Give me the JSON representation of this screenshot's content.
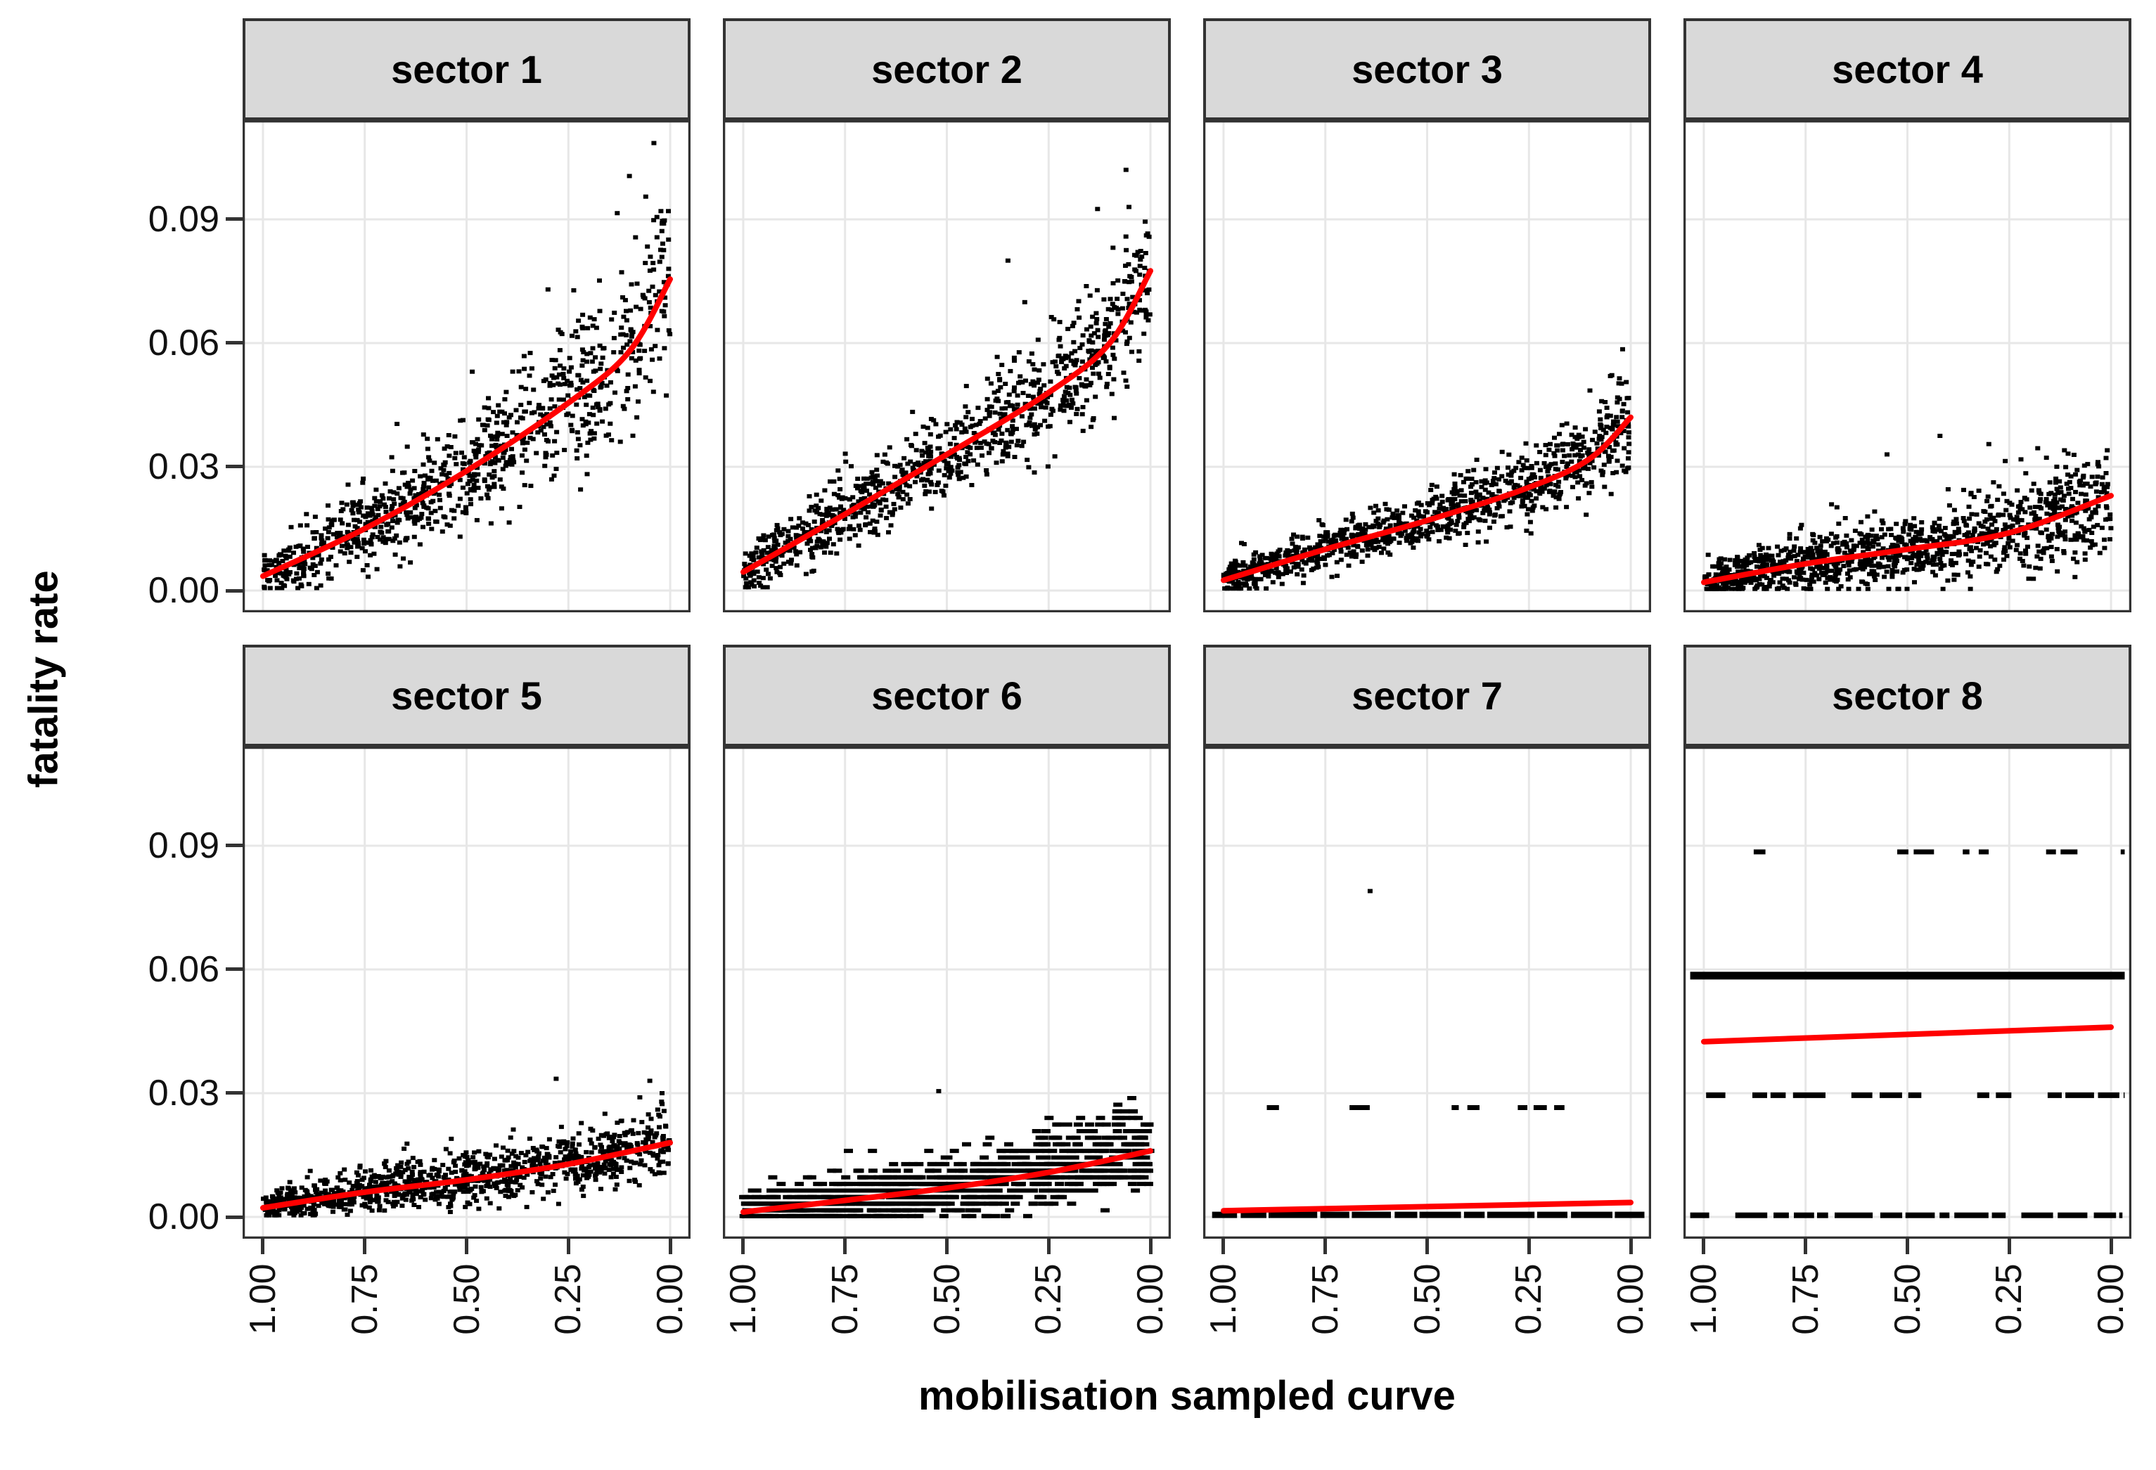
{
  "figure": {
    "y_axis_title": "fatality rate",
    "x_axis_title": "mobilisation sampled curve",
    "y_ticks": [
      "0.09",
      "0.06",
      "0.03",
      "0.00"
    ],
    "y_tick_values": [
      0.09,
      0.06,
      0.03,
      0.0
    ],
    "x_ticks": [
      "1.00",
      "0.75",
      "0.50",
      "0.25",
      "0.00"
    ],
    "x_tick_values": [
      1.0,
      0.75,
      0.5,
      0.25,
      0.0
    ],
    "x_axis_reversed": true,
    "legend": "none",
    "grid": "major-only",
    "colors": {
      "point": "#000000",
      "smooth_line": "#ff0000",
      "strip_fill": "#d9d9d9",
      "strip_border": "#333333",
      "panel_border": "#333333",
      "gridline": "#e7e7e7",
      "tick_mark": "#333333",
      "axis_text": "#111111",
      "background": "#ffffff"
    }
  },
  "chart_data": {
    "type": "scatter",
    "title": "",
    "xlabel": "mobilisation sampled curve",
    "ylabel": "fatality rate",
    "facet_layout": {
      "rows": 2,
      "cols": 4
    },
    "x_display_range": [
      1.05,
      -0.05
    ],
    "y_display_range": [
      -0.0053,
      0.1141
    ],
    "point_style": {
      "color": "#000000",
      "w": 7,
      "h": 6
    },
    "smooth_style": {
      "color": "#ff0000",
      "width": 8
    },
    "facets": [
      {
        "label": "sector 1",
        "kind": "scatter",
        "n": 900,
        "seed": 101,
        "smooth_line": [
          [
            1.0,
            0.0035
          ],
          [
            0.75,
            0.015
          ],
          [
            0.5,
            0.029
          ],
          [
            0.25,
            0.0455
          ],
          [
            0.1,
            0.058
          ],
          [
            0.0,
            0.0755
          ]
        ],
        "noise": {
          "base": 0.0028,
          "prop": 0.13
        },
        "y_min": 0.0006,
        "y_max": 0.092,
        "extra_points": [
          [
            0.04,
            0.1085
          ],
          [
            0.1,
            0.1005
          ],
          [
            0.06,
            0.0955
          ],
          [
            0.13,
            0.0915
          ],
          [
            0.02,
            0.089
          ],
          [
            0.3,
            0.073
          ]
        ]
      },
      {
        "label": "sector 2",
        "kind": "scatter",
        "n": 950,
        "seed": 202,
        "smooth_line": [
          [
            1.0,
            0.0045
          ],
          [
            0.75,
            0.0185
          ],
          [
            0.5,
            0.033
          ],
          [
            0.25,
            0.048
          ],
          [
            0.1,
            0.06
          ],
          [
            0.0,
            0.0775
          ]
        ],
        "noise": {
          "base": 0.0022,
          "prop": 0.1
        },
        "y_min": 0.0008,
        "y_max": 0.093,
        "extra_points": [
          [
            0.06,
            0.102
          ],
          [
            0.13,
            0.0925
          ],
          [
            0.35,
            0.08
          ]
        ]
      },
      {
        "label": "sector 3",
        "kind": "scatter",
        "n": 1000,
        "seed": 303,
        "smooth_line": [
          [
            1.0,
            0.0025
          ],
          [
            0.75,
            0.01
          ],
          [
            0.5,
            0.017
          ],
          [
            0.25,
            0.025
          ],
          [
            0.1,
            0.032
          ],
          [
            0.0,
            0.042
          ]
        ],
        "noise": {
          "base": 0.0016,
          "prop": 0.11
        },
        "y_min": 0.0005,
        "y_max": 0.054,
        "extra_points": [
          [
            0.02,
            0.0585
          ],
          [
            0.05,
            0.052
          ]
        ]
      },
      {
        "label": "sector 4",
        "kind": "scatter",
        "n": 1150,
        "seed": 404,
        "smooth_line": [
          [
            1.0,
            0.002
          ],
          [
            0.75,
            0.0065
          ],
          [
            0.5,
            0.01
          ],
          [
            0.25,
            0.014
          ],
          [
            0.0,
            0.023
          ]
        ],
        "noise": {
          "base": 0.002,
          "prop": 0.22
        },
        "y_min": 0.0004,
        "y_max": 0.034,
        "extra_points": [
          [
            0.42,
            0.0375
          ],
          [
            0.3,
            0.0355
          ],
          [
            0.18,
            0.0345
          ],
          [
            0.55,
            0.033
          ]
        ]
      },
      {
        "label": "sector 5",
        "kind": "scatter",
        "n": 1050,
        "seed": 505,
        "smooth_line": [
          [
            1.0,
            0.0022
          ],
          [
            0.75,
            0.006
          ],
          [
            0.5,
            0.009
          ],
          [
            0.25,
            0.0128
          ],
          [
            0.0,
            0.018
          ]
        ],
        "noise": {
          "base": 0.0016,
          "prop": 0.16
        },
        "y_min": 0.0004,
        "y_max": 0.029,
        "extra_points": [
          [
            0.28,
            0.0335
          ],
          [
            0.05,
            0.033
          ],
          [
            0.02,
            0.03
          ]
        ]
      },
      {
        "label": "sector 6",
        "kind": "scatter",
        "n": 1150,
        "seed": 606,
        "quantize": 0.0016,
        "dash_points": true,
        "smooth_line": [
          [
            1.0,
            0.0012
          ],
          [
            0.75,
            0.004
          ],
          [
            0.5,
            0.007
          ],
          [
            0.25,
            0.0108
          ],
          [
            0.0,
            0.016
          ]
        ],
        "noise": {
          "base": 0.002,
          "prop": 0.2
        },
        "y_min": 0.0002,
        "y_max": 0.029,
        "extra_points": [
          [
            0.52,
            0.0305
          ]
        ]
      },
      {
        "label": "sector 7",
        "kind": "bands",
        "seed": 707,
        "smooth_line": [
          [
            1.0,
            0.0015
          ],
          [
            0.0,
            0.0035
          ]
        ],
        "bands": [
          {
            "y": 0.0005,
            "h": 9,
            "x0": 0.02,
            "x1": 0.985,
            "d0": 0.94,
            "d1": 0.94,
            "wMin": 26,
            "wMax": 70,
            "gMin": 3,
            "gMax": 9
          },
          {
            "y": 0.0265,
            "h": 7,
            "x0": 0.02,
            "x1": 0.985,
            "d0": 0.3,
            "d1": 0.5,
            "wMin": 8,
            "wMax": 30,
            "gMin": 6,
            "gMax": 40
          }
        ],
        "extra_points": [
          [
            0.64,
            0.079
          ]
        ]
      },
      {
        "label": "sector 8",
        "kind": "bands",
        "seed": 808,
        "smooth_line": [
          [
            1.0,
            0.0425
          ],
          [
            0.0,
            0.046
          ]
        ],
        "bands": [
          {
            "y": 0.0885,
            "h": 7,
            "x0": 0.07,
            "x1": 0.985,
            "d0": 0.22,
            "d1": 0.55,
            "wMin": 8,
            "wMax": 34,
            "gMin": 6,
            "gMax": 46
          },
          {
            "y": 0.0585,
            "h": 11,
            "x0": 0.015,
            "x1": 0.985,
            "solid": true
          },
          {
            "y": 0.0295,
            "h": 8,
            "x0": 0.015,
            "x1": 0.985,
            "d0": 0.8,
            "d1": 0.8,
            "wMin": 14,
            "wMax": 50,
            "gMin": 4,
            "gMax": 26
          },
          {
            "y": 0.0004,
            "h": 8,
            "x0": 0.015,
            "x1": 0.98,
            "d0": 0.82,
            "d1": 0.82,
            "wMin": 14,
            "wMax": 55,
            "gMin": 4,
            "gMax": 22
          }
        ],
        "extra_points": []
      }
    ]
  }
}
